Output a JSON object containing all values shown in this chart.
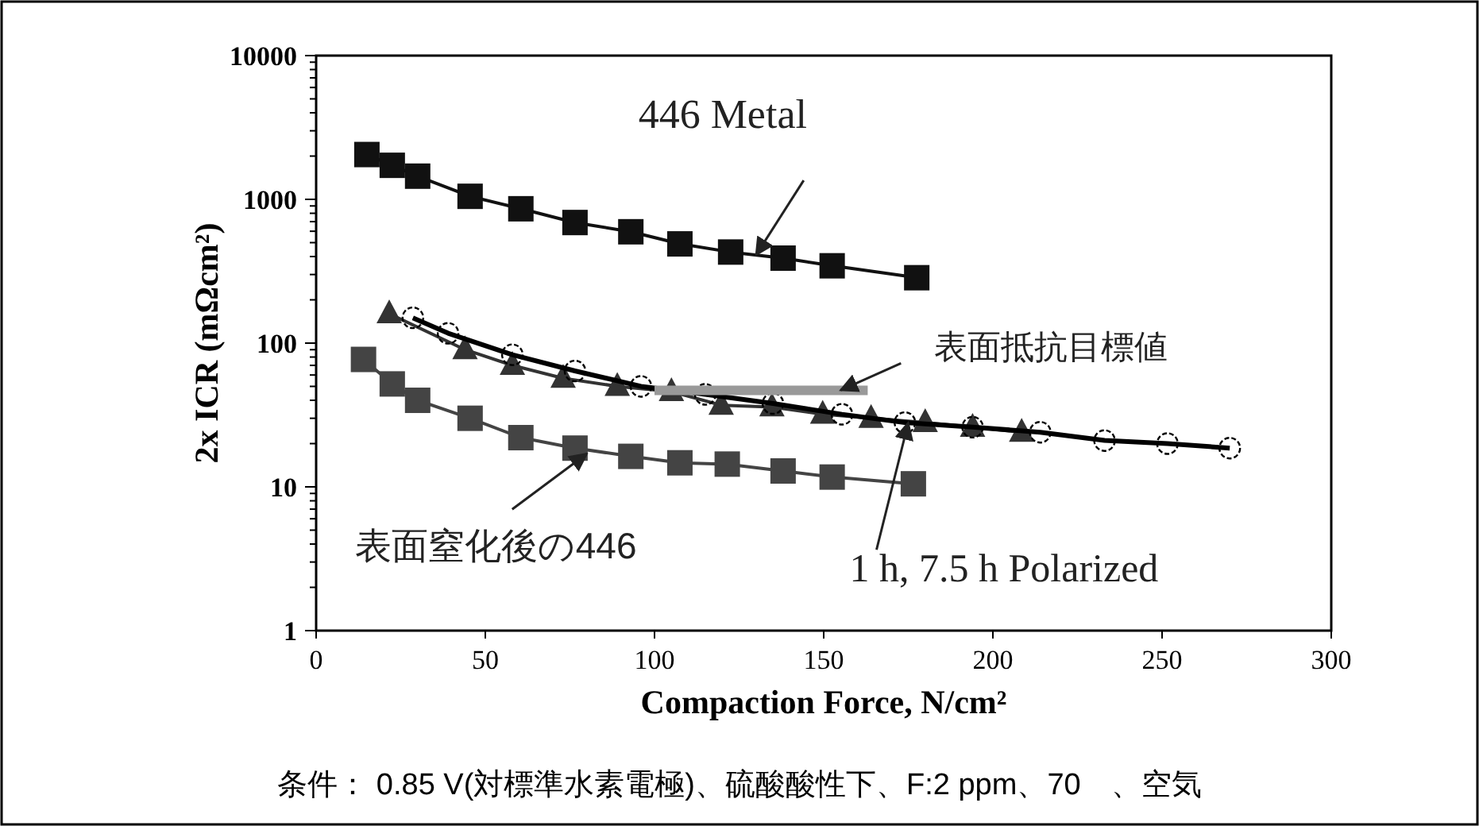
{
  "chart_data": {
    "type": "line",
    "xlabel": "Compaction Force, N/cm²",
    "ylabel": "2x ICR (mΩcm²)",
    "log": "y",
    "xlim": [
      0,
      300
    ],
    "xticks": [
      0,
      50,
      100,
      150,
      200,
      250,
      300
    ],
    "ylim": [
      1,
      10000
    ],
    "yticks": [
      1,
      10,
      100,
      1000,
      10000
    ],
    "grid": false,
    "series": [
      {
        "color": "#111111",
        "marker": "square",
        "x": [
          15,
          22.5,
          30,
          45.5,
          60.5,
          76.5,
          93,
          107.5,
          122.5,
          138,
          152.5,
          177.5
        ],
        "values": [
          2050,
          1725,
          1450,
          1050,
          860,
          690,
          595,
          490,
          430,
          390,
          345,
          285
        ]
      },
      {
        "color": "#444444",
        "marker": "square",
        "x": [
          14,
          22.5,
          30,
          45.5,
          60.5,
          76.5,
          93,
          107.5,
          121.5,
          138,
          152.5,
          176.5
        ],
        "values": [
          77,
          52,
          40,
          30,
          22,
          18.6,
          16.3,
          14.7,
          14.4,
          12.9,
          11.7,
          10.5
        ]
      },
      {
        "color": "#333333",
        "marker": "triangle",
        "x": [
          21.6,
          44,
          58,
          73,
          89,
          105,
          119.7,
          134.7,
          149.7,
          164,
          180,
          194,
          208.5
        ],
        "values": [
          160,
          90,
          70,
          57,
          50,
          46,
          37,
          36,
          32,
          30,
          28,
          26,
          24
        ]
      },
      {
        "color": "#000000",
        "marker": "circle",
        "x": [
          28.6,
          39,
          58,
          76.5,
          96,
          115,
          135,
          155.4,
          174,
          194,
          214,
          233,
          251.6,
          270
        ],
        "values": [
          150,
          117,
          83,
          64,
          50,
          44,
          38,
          32,
          28,
          26,
          24,
          21,
          20,
          18.6
        ]
      },
      {
        "color": "#999999",
        "marker": "none",
        "x": [
          100,
          163
        ],
        "values": [
          47,
          47
        ]
      }
    ],
    "annotations": [
      {
        "text": "446 Metal",
        "x": 130,
        "y": 410
      },
      {
        "text": "表面抵抗目標値",
        "x": 155,
        "y": 47
      },
      {
        "text": "表面窒化後の446",
        "x": 80,
        "y": 17
      },
      {
        "text": "1 h, 7.5 h Polarized",
        "x": 175,
        "y": 28
      },
      "条件：  0.85 V(対標準水素電極)、硫酸酸性下、F:2 ppm、70　、空気"
    ]
  }
}
